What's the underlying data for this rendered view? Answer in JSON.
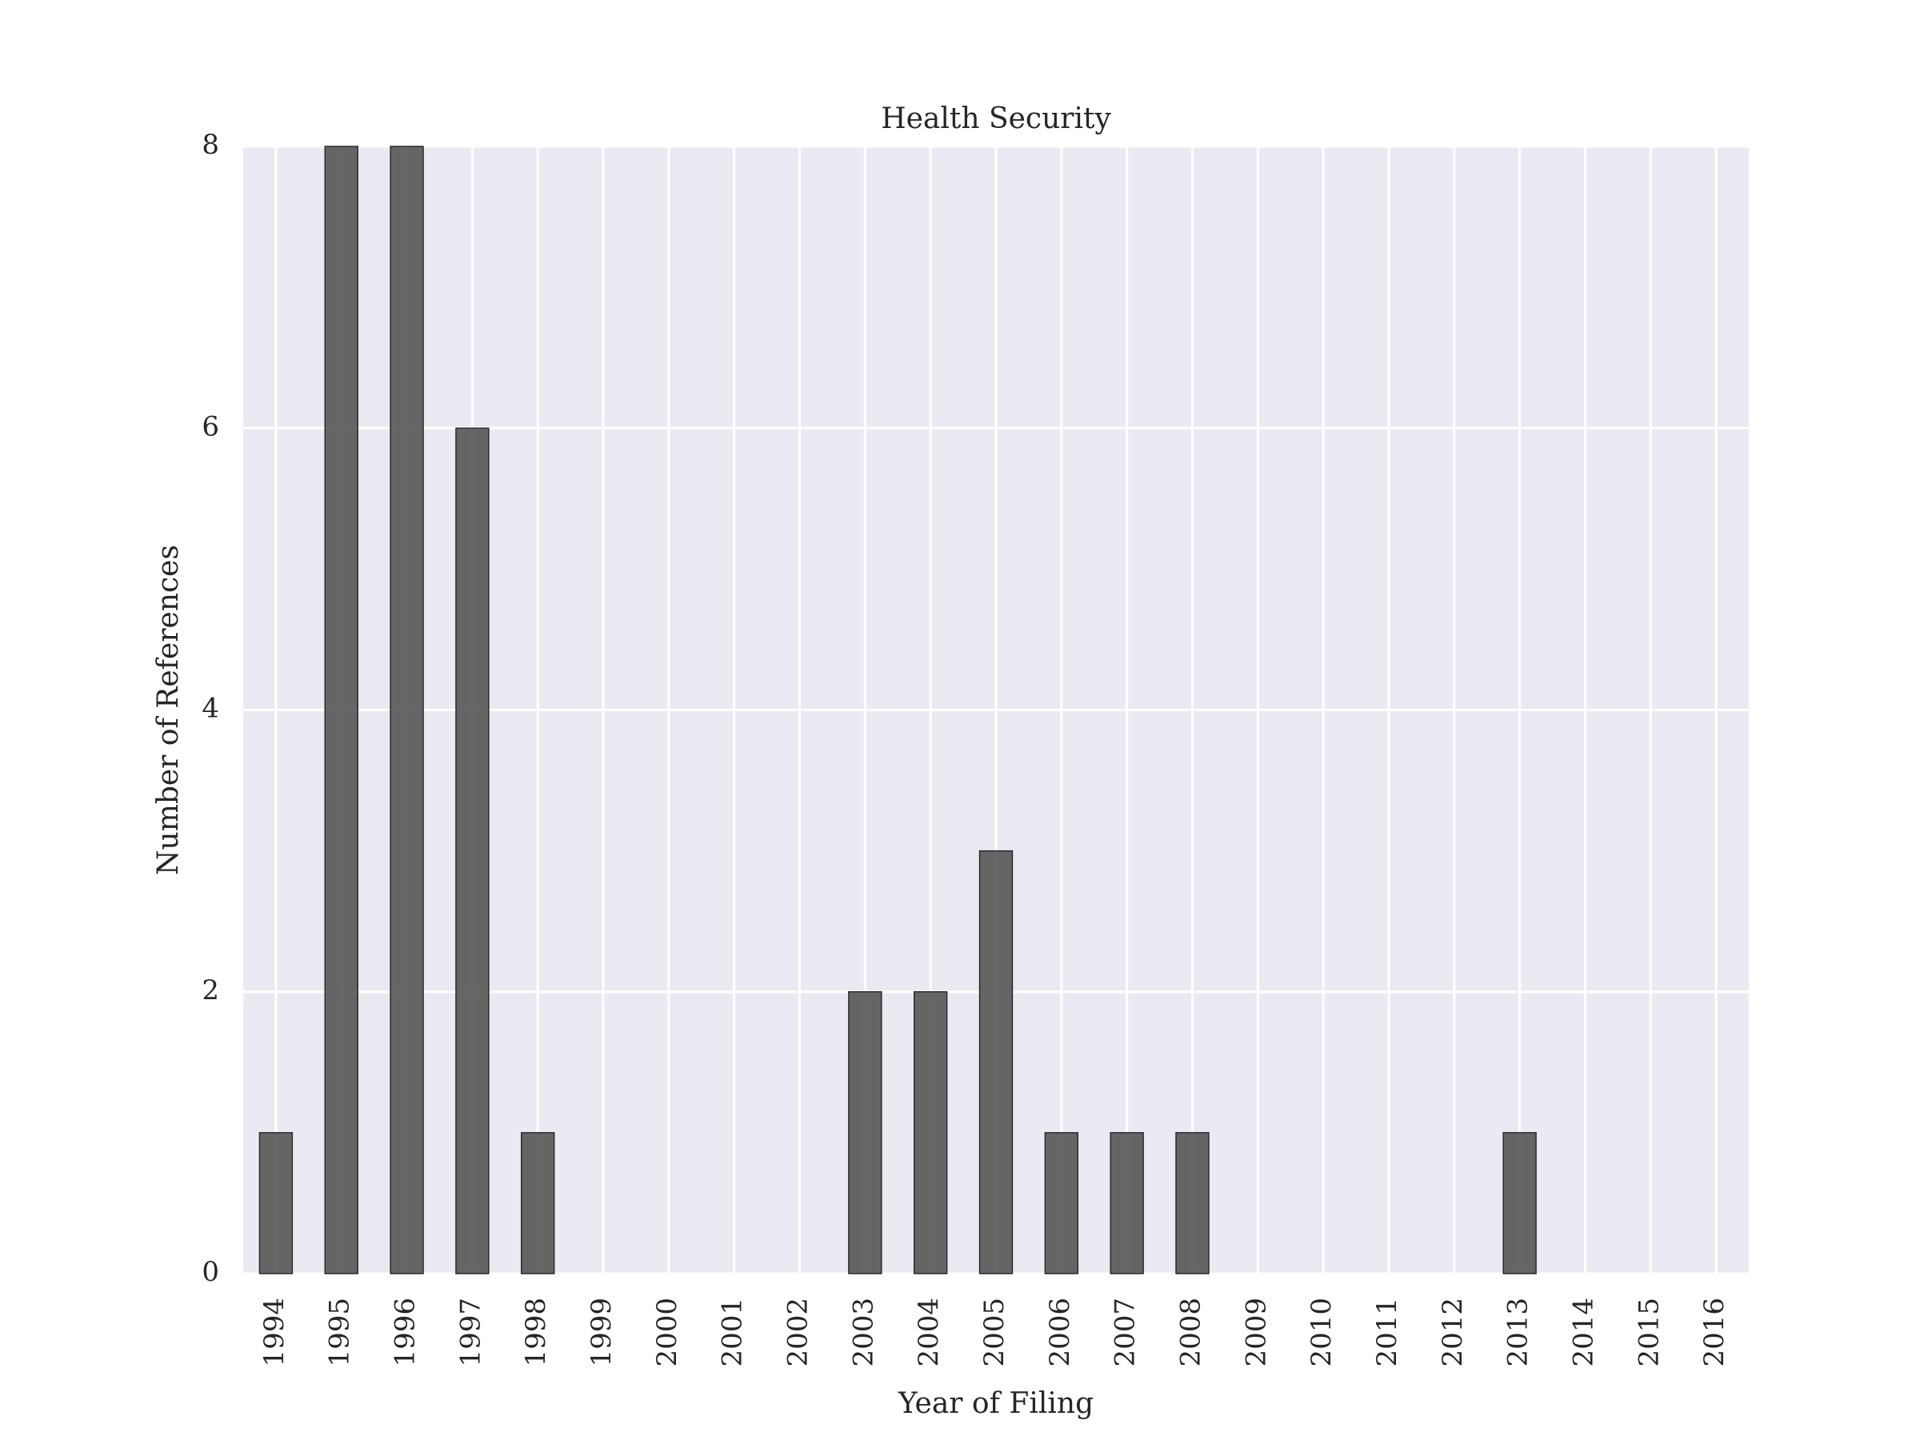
{
  "chart_data": {
    "type": "bar",
    "title": "Health Security",
    "xlabel": "Year of Filing",
    "ylabel": "Number of References",
    "categories": [
      "1994",
      "1995",
      "1996",
      "1997",
      "1998",
      "1999",
      "2000",
      "2001",
      "2002",
      "2003",
      "2004",
      "2005",
      "2006",
      "2007",
      "2008",
      "2009",
      "2010",
      "2011",
      "2012",
      "2013",
      "2014",
      "2015",
      "2016"
    ],
    "values": [
      1,
      8,
      8,
      6,
      1,
      0,
      0,
      0,
      0,
      2,
      2,
      3,
      1,
      1,
      1,
      0,
      0,
      0,
      0,
      1,
      0,
      0,
      0
    ],
    "ylim": [
      0,
      8
    ],
    "yticks": [
      0,
      2,
      4,
      6,
      8
    ],
    "grid": true,
    "colors": {
      "bar": "#575757",
      "bar_edge": "#2b2b2b",
      "plot_background": "#EAEAF2",
      "grid": "#ffffff",
      "text": "#262626"
    }
  }
}
